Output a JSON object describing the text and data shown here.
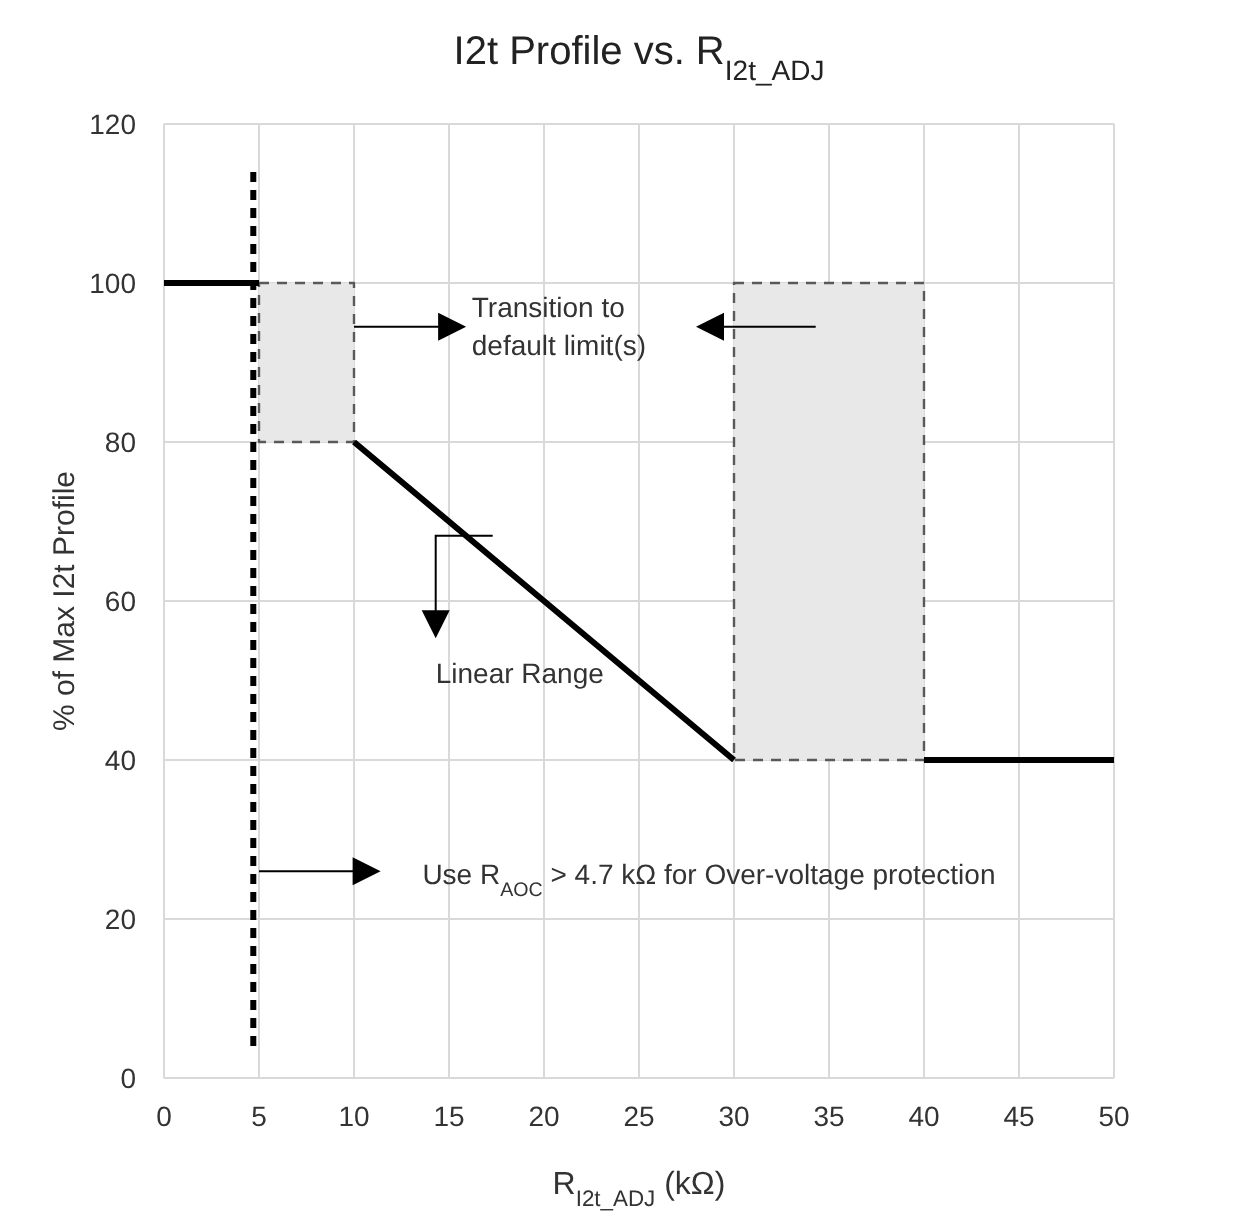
{
  "chart_data": {
    "type": "line",
    "title": "I2t Profile vs. R$_{I2t_ADJ}$",
    "xlabel": "R$_{I2t_ADJ}$ (kΩ)",
    "ylabel": "% of Max I2t Profile",
    "xlim": [
      0,
      50
    ],
    "xticks": [
      0,
      5,
      10,
      15,
      20,
      25,
      30,
      35,
      40,
      45,
      50
    ],
    "ylim": [
      0,
      120
    ],
    "yticks": [
      0,
      20,
      40,
      60,
      80,
      100,
      120
    ],
    "grid": true,
    "marker": "none",
    "series": [
      {
        "type": "area",
        "color": "#e8e8e8",
        "line_style": "dashed",
        "x": [
          5,
          10,
          10,
          5,
          5
        ],
        "values": [
          100,
          100,
          80,
          80,
          100
        ]
      },
      {
        "type": "area",
        "color": "#e8e8e8",
        "line_style": "dashed",
        "x": [
          30,
          40,
          40,
          30,
          30
        ],
        "values": [
          100,
          100,
          40,
          40,
          100
        ]
      },
      {
        "type": "line",
        "color": "#000000",
        "line_style": "solid",
        "x": [
          0,
          5,
          7.5,
          10,
          30,
          35,
          40,
          50
        ],
        "values": [
          100,
          100,
          null,
          80,
          40,
          null,
          40,
          40
        ]
      }
    ],
    "ref_lines": [
      {
        "axis": "x",
        "value": 4.7,
        "color": "#000000",
        "line_style": "dashed"
      }
    ],
    "annotations": [
      "Transition to\ndefault limit(s)",
      "Linear Range",
      "Use R$_{AOC}$ > 4.7 kΩ for Over-voltage protection"
    ]
  }
}
